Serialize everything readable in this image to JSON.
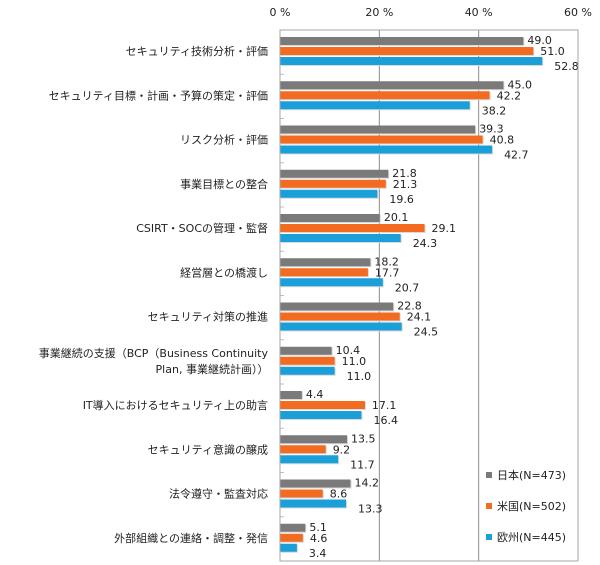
{
  "chart_data": {
    "type": "bar",
    "orientation": "horizontal",
    "title": "",
    "xlabel": "",
    "ylabel": "",
    "xlim": [
      0,
      60
    ],
    "x_ticks": [
      0,
      20,
      40,
      60
    ],
    "x_tick_labels": [
      "0 %",
      "20 %",
      "40 %",
      "60 %"
    ],
    "x_axis_position": "top",
    "grid": true,
    "legend_position": "bottom-right",
    "categories": [
      [
        "セキュリティ技術分析・評価"
      ],
      [
        "セキュリティ目標・計画・予算の策定・評価"
      ],
      [
        "リスク分析・評価"
      ],
      [
        "事業目標との整合"
      ],
      [
        "CSIRT・SOCの管理・監督"
      ],
      [
        "経営層との橋渡し"
      ],
      [
        "セキュリティ対策の推進"
      ],
      [
        "事業継続の支援（BCP（Business Continuity",
        "Plan, 事業継続計画））"
      ],
      [
        "IT導入におけるセキュリティ上の助言"
      ],
      [
        "セキュリティ意識の醸成"
      ],
      [
        "法令遵守・監査対応"
      ],
      [
        "外部組織との連絡・調整・発信"
      ]
    ],
    "series": [
      {
        "name": "日本(N=473)",
        "color": "#7a7a7a",
        "values": [
          49.0,
          45.0,
          39.3,
          21.8,
          20.1,
          18.2,
          22.8,
          10.4,
          4.4,
          13.5,
          14.2,
          5.1
        ],
        "labels": [
          "49.0",
          "45.0",
          "39.3",
          "21.8",
          "20.1",
          "18.2",
          "22.8",
          "10.4",
          "4.4",
          "13.5",
          "14.2",
          "5.1"
        ]
      },
      {
        "name": "米国(N=502)",
        "color": "#f26b21",
        "values": [
          51.0,
          42.2,
          40.8,
          21.3,
          29.1,
          17.7,
          24.1,
          11.0,
          17.1,
          9.2,
          8.6,
          4.6
        ],
        "labels": [
          "51.0",
          "42.2",
          "40.8",
          "21.3",
          "29.1",
          "17.7",
          "24.1",
          "11.0",
          "17.1",
          "9.2",
          "8.6",
          "4.6"
        ]
      },
      {
        "name": "欧州(N=445)",
        "color": "#1b9fd8",
        "values": [
          52.8,
          38.2,
          42.7,
          19.6,
          24.3,
          20.7,
          24.5,
          11.0,
          16.4,
          11.7,
          13.3,
          3.4
        ],
        "labels": [
          "52.8",
          "38.2",
          "42.7",
          "19.6",
          "24.3",
          "20.7",
          "24.5",
          "11.0",
          "16.4",
          "11.7",
          "13.3",
          "3.4"
        ]
      }
    ]
  }
}
